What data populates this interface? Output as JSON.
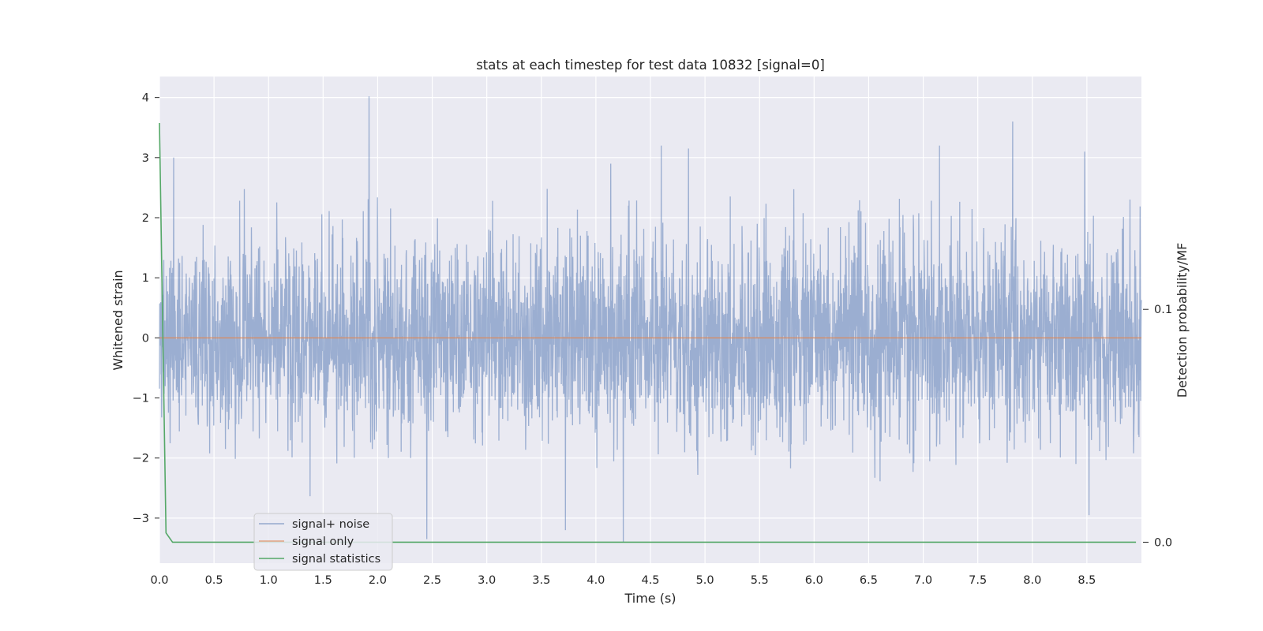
{
  "chart_data": {
    "type": "line",
    "title": "stats at each timestep for test data 10832 [signal=0]",
    "xlabel": "Time (s)",
    "ylabel": "Whitened strain",
    "ylabel_right": "Detection probability/MF",
    "xlim": [
      0.0,
      9.0
    ],
    "ylim": [
      -3.75,
      4.35
    ],
    "ylim_right": [
      -0.009,
      0.2
    ],
    "x_ticks": [
      "0.0",
      "0.5",
      "1.0",
      "1.5",
      "2.0",
      "2.5",
      "3.0",
      "3.5",
      "4.0",
      "4.5",
      "5.0",
      "5.5",
      "6.0",
      "6.5",
      "7.0",
      "7.5",
      "8.0",
      "8.5"
    ],
    "x_tick_values": [
      0.0,
      0.5,
      1.0,
      1.5,
      2.0,
      2.5,
      3.0,
      3.5,
      4.0,
      4.5,
      5.0,
      5.5,
      6.0,
      6.5,
      7.0,
      7.5,
      8.0,
      8.5
    ],
    "y_ticks": [
      "−3",
      "−2",
      "−1",
      "0",
      "1",
      "2",
      "3",
      "4"
    ],
    "y_tick_values": [
      -3,
      -2,
      -1,
      0,
      1,
      2,
      3,
      4
    ],
    "y_right_ticks": [
      "0.0",
      "0.1"
    ],
    "y_right_tick_values": [
      0.0,
      0.1
    ],
    "grid": true,
    "legend_position": "lower-left",
    "series": [
      {
        "name": "signal+ noise",
        "axis": "left",
        "color": "#4c72b0",
        "style": "dense noise, alpha 0.5",
        "peaks": [
          {
            "x": 1.92,
            "y": 4.02
          },
          {
            "x": 7.82,
            "y": 3.6
          },
          {
            "x": 4.6,
            "y": 3.2
          },
          {
            "x": 7.15,
            "y": 3.2
          },
          {
            "x": 4.85,
            "y": 3.15
          },
          {
            "x": 8.48,
            "y": 3.1
          },
          {
            "x": 0.13,
            "y": 3.0
          },
          {
            "x": 2.45,
            "y": -3.35
          },
          {
            "x": 4.25,
            "y": -3.4
          },
          {
            "x": 3.72,
            "y": -3.2
          },
          {
            "x": 8.52,
            "y": -2.95
          }
        ]
      },
      {
        "name": "signal only",
        "axis": "left",
        "color": "#dd8452",
        "x": [
          0.0,
          9.0
        ],
        "y": [
          0.0,
          0.0
        ]
      },
      {
        "name": "signal statistics",
        "axis": "right",
        "color": "#55a868",
        "x": [
          0.0,
          0.06,
          0.12,
          8.95
        ],
        "y": [
          0.18,
          0.004,
          0.0,
          0.0
        ]
      }
    ]
  }
}
